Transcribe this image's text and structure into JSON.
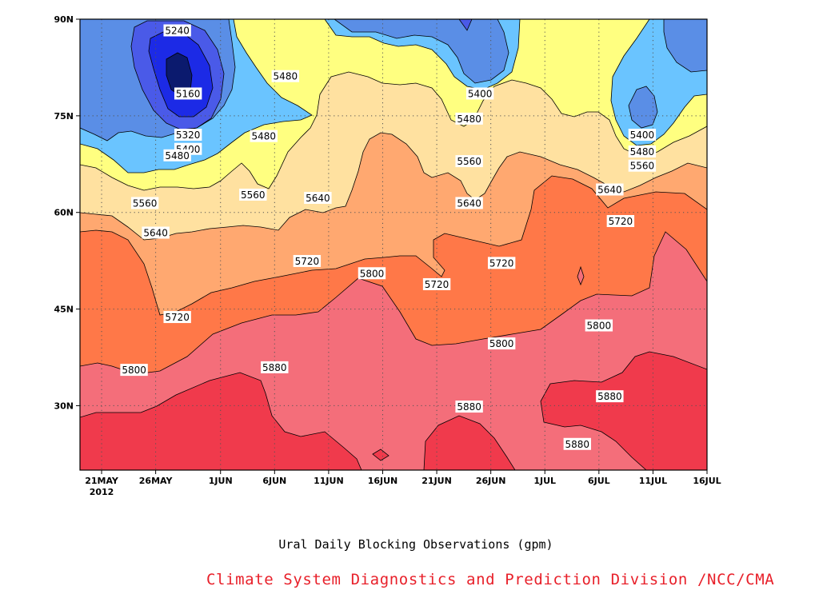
{
  "chart_data": {
    "type": "contour",
    "title": "Ural Daily Blocking Observations (gpm)",
    "source": "Climate System Diagnostics and Prediction Division /NCC/CMA",
    "x_ticks": [
      {
        "label": "21MAY",
        "sub": "2012"
      },
      {
        "label": "26MAY"
      },
      {
        "label": "1JUN"
      },
      {
        "label": "6JUN"
      },
      {
        "label": "11JUN"
      },
      {
        "label": "16JUN"
      },
      {
        "label": "21JUN"
      },
      {
        "label": "26JUN"
      },
      {
        "label": "1JUL"
      },
      {
        "label": "6JUL"
      },
      {
        "label": "11JUL"
      },
      {
        "label": "16JUL"
      }
    ],
    "x_range": [
      "2012-05-19",
      "2012-07-16"
    ],
    "y_ticks": [
      "30N",
      "45N",
      "60N",
      "75N",
      "90N"
    ],
    "y_range": [
      "20N",
      "90N"
    ],
    "levels": [
      5160,
      5240,
      5320,
      5400,
      5480,
      5560,
      5640,
      5720,
      5800,
      5880
    ],
    "fill_colors": [
      "#0b1a6e",
      "#1c2ae6",
      "#4a5ae8",
      "#5a8ee6",
      "#6ac4ff",
      "#ffff80",
      "#ffe1a0",
      "#ffa870",
      "#ff7848",
      "#f46e7a",
      "#f03a4c"
    ],
    "contour_labels": [
      {
        "value": "5240",
        "date": "2012-05-28",
        "lat": 88.2
      },
      {
        "value": "5160",
        "date": "2012-05-29",
        "lat": 78.4
      },
      {
        "value": "5320",
        "date": "2012-05-29",
        "lat": 72.0
      },
      {
        "value": "5400",
        "date": "2012-05-29",
        "lat": 69.8
      },
      {
        "value": "5480",
        "date": "2012-05-28",
        "lat": 68.8
      },
      {
        "value": "5480",
        "date": "2012-06-07",
        "lat": 81.1
      },
      {
        "value": "5480",
        "date": "2012-06-05",
        "lat": 71.8
      },
      {
        "value": "5400",
        "date": "2012-06-25",
        "lat": 78.4
      },
      {
        "value": "5480",
        "date": "2012-06-24",
        "lat": 74.5
      },
      {
        "value": "5560",
        "date": "2012-06-24",
        "lat": 67.9
      },
      {
        "value": "5400",
        "date": "2012-07-10",
        "lat": 72.0
      },
      {
        "value": "5480",
        "date": "2012-07-10",
        "lat": 69.4
      },
      {
        "value": "5560",
        "date": "2012-07-10",
        "lat": 67.2
      },
      {
        "value": "5560",
        "date": "2012-05-25",
        "lat": 61.4
      },
      {
        "value": "5560",
        "date": "2012-06-04",
        "lat": 62.7
      },
      {
        "value": "5640",
        "date": "2012-06-10",
        "lat": 62.2
      },
      {
        "value": "5640",
        "date": "2012-05-26",
        "lat": 56.8
      },
      {
        "value": "5640",
        "date": "2012-06-24",
        "lat": 61.4
      },
      {
        "value": "5640",
        "date": "2012-07-07",
        "lat": 63.5
      },
      {
        "value": "5720",
        "date": "2012-07-08",
        "lat": 58.6
      },
      {
        "value": "5720",
        "date": "2012-06-09",
        "lat": 52.4
      },
      {
        "value": "5720",
        "date": "2012-06-27",
        "lat": 52.1
      },
      {
        "value": "5720",
        "date": "2012-06-21",
        "lat": 48.8
      },
      {
        "value": "5800",
        "date": "2012-06-15",
        "lat": 50.5
      },
      {
        "value": "5720",
        "date": "2012-05-28",
        "lat": 43.7
      },
      {
        "value": "5800",
        "date": "2012-05-24",
        "lat": 35.5
      },
      {
        "value": "5800",
        "date": "2012-06-27",
        "lat": 39.6
      },
      {
        "value": "5800",
        "date": "2012-07-06",
        "lat": 42.4
      },
      {
        "value": "5880",
        "date": "2012-06-06",
        "lat": 35.9
      },
      {
        "value": "5880",
        "date": "2012-06-24",
        "lat": 29.8
      },
      {
        "value": "5880",
        "date": "2012-07-07",
        "lat": 31.4
      },
      {
        "value": "5880",
        "date": "2012-07-04",
        "lat": 24.0
      }
    ]
  }
}
